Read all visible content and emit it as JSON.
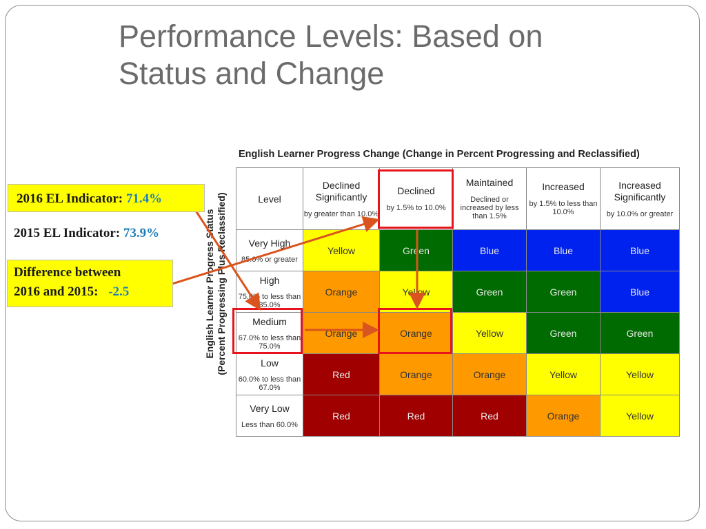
{
  "slide": {
    "title_line1": "Performance Levels: Based on",
    "title_line2": "Status and Change"
  },
  "callouts": {
    "el_2016_label": "2016 EL Indicator:",
    "el_2016_value": "71.4%",
    "el_2015_label": "2015 EL Indicator:",
    "el_2015_value": "73.9%",
    "difference_line1": "Difference between",
    "difference_line2": "2016 and 2015:",
    "difference_value": "-2.5"
  },
  "matrix": {
    "title": "English Learner Progress Change (Change in Percent Progressing and Reclassified)",
    "axis_label_line1": "English Learner Progress Status",
    "axis_label_line2": "(Percent Progressing Plus Reclassified)",
    "level_header": "Level",
    "columns": [
      {
        "main": "Declined Significantly",
        "sub": "by greater than 10.0%"
      },
      {
        "main": "Declined",
        "sub": "by 1.5% to 10.0%"
      },
      {
        "main": "Maintained",
        "sub": "Declined or increased by less than 1.5%"
      },
      {
        "main": "Increased",
        "sub": "by 1.5% to less than 10.0%"
      },
      {
        "main": "Increased Significantly",
        "sub": "by 10.0% or greater"
      }
    ],
    "rows": [
      {
        "main": "Very High",
        "sub": "85.0% or greater",
        "cells": [
          "Yellow",
          "Green",
          "Blue",
          "Blue",
          "Blue"
        ]
      },
      {
        "main": "High",
        "sub": "75.0% to less than 85.0%",
        "cells": [
          "Orange",
          "Yellow",
          "Green",
          "Green",
          "Blue"
        ]
      },
      {
        "main": "Medium",
        "sub": "67.0% to less than 75.0%",
        "cells": [
          "Orange",
          "Orange",
          "Yellow",
          "Green",
          "Green"
        ]
      },
      {
        "main": "Low",
        "sub": "60.0% to less than 67.0%",
        "cells": [
          "Red",
          "Orange",
          "Orange",
          "Yellow",
          "Yellow"
        ]
      },
      {
        "main": "Very Low",
        "sub": "Less than 60.0%",
        "cells": [
          "Red",
          "Red",
          "Red",
          "Orange",
          "Yellow"
        ]
      }
    ],
    "highlight": {
      "column": "Declined",
      "row": "Medium",
      "result": "Orange"
    }
  },
  "colors": {
    "Yellow": "#ffff00",
    "Green": "#006b00",
    "Blue": "#0022ee",
    "Orange": "#ff9900",
    "Red": "#a00000",
    "highlight_box": "#e8141b",
    "arrow": "#d9541e",
    "callout_value": "#1f7eb8"
  }
}
